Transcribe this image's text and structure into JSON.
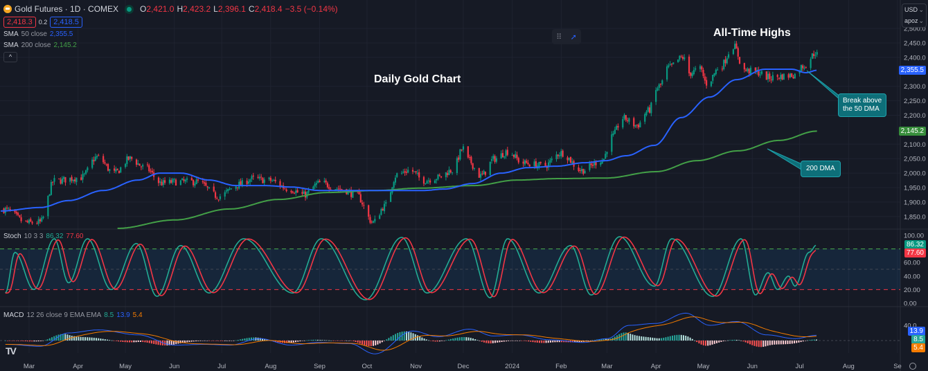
{
  "header": {
    "symbol_title": "Gold Futures · 1D · COMEX",
    "ohlc": {
      "o_label": "O",
      "o": "2,421.0",
      "h_label": "H",
      "h": "2,423.2",
      "l_label": "L",
      "l": "2,396.1",
      "c_label": "C",
      "c": "2,418.4",
      "change": "−3.5 (−0.14%)"
    },
    "bid": "2,418.3",
    "spread": "0.2",
    "ask": "2,418.5",
    "sma50": {
      "label": "SMA",
      "params": "50 close",
      "value": "2,355.5"
    },
    "sma200": {
      "label": "SMA",
      "params": "200 close",
      "value": "2,145.2"
    },
    "collapse_icon": "chevron-up"
  },
  "toolbar": {
    "drag_icon": "drag-handle",
    "cursor_icon": "cursor-arrow"
  },
  "currency": {
    "value": "USD",
    "unit": "apoz"
  },
  "annotations": {
    "daily_title": "Daily Gold Chart",
    "ath": "All-Time Highs",
    "break_line1": "Break above",
    "break_line2": "the 50 DMA",
    "dma200": "200 DMA"
  },
  "stoch_legend": {
    "label": "Stoch",
    "params": "10 3 3",
    "k": "86.32",
    "d": "77.60"
  },
  "macd_legend": {
    "label": "MACD",
    "params": "12 26 close 9 EMA EMA",
    "hist": "8.5",
    "macd": "13.9",
    "signal": "5.4"
  },
  "colors": {
    "bg": "#161a25",
    "up": "#089981",
    "down": "#f23645",
    "sma50": "#2962ff",
    "sma200": "#43a047",
    "stoch_k": "#22ab94",
    "stoch_d": "#f23645",
    "macd": "#2962ff",
    "signal": "#f57c00",
    "callout": "#0e6f79"
  },
  "chart_data": {
    "type": "candlestick",
    "price_axis": {
      "ticks": [
        "2,500.0",
        "2,450.0",
        "2,400.0",
        "2,300.0",
        "2,250.0",
        "2,200.0",
        "2,100.0",
        "2,050.0",
        "2,000.0",
        "1,950.0",
        "1,900.0",
        "1,850.0"
      ],
      "tick_values": [
        2500,
        2450,
        2400,
        2300,
        2250,
        2200,
        2100,
        2050,
        2000,
        1950,
        1900,
        1850
      ],
      "range": [
        1800,
        2500
      ],
      "last_labels": {
        "sma50": "2,355.5",
        "sma200": "2,145.2"
      }
    },
    "time_axis": {
      "labels": [
        [
          "Mar",
          "2023-03-01"
        ],
        [
          "Apr",
          "2023-04-01"
        ],
        [
          "May",
          "2023-05-01"
        ],
        [
          "Jun",
          "2023-06-01"
        ],
        [
          "Jul",
          "2023-07-01"
        ],
        [
          "Aug",
          "2023-08-01"
        ],
        [
          "Sep",
          "2023-09-01"
        ],
        [
          "Oct",
          "2023-10-01"
        ],
        [
          "Nov",
          "2023-11-01"
        ],
        [
          "Dec",
          "2023-12-01"
        ],
        [
          "2024",
          "2024-01-01"
        ],
        [
          "Feb",
          "2024-02-01"
        ],
        [
          "Mar",
          "2024-03-01"
        ],
        [
          "Apr",
          "2024-04-01"
        ],
        [
          "May",
          "2024-05-01"
        ],
        [
          "Jun",
          "2024-06-01"
        ],
        [
          "Jul",
          "2024-07-01"
        ],
        [
          "Aug",
          "2024-08-01"
        ],
        [
          "Se",
          "2024-09-01"
        ]
      ]
    },
    "close": [
      [
        "2023-02-13",
        1875
      ],
      [
        "2023-02-28",
        1828
      ],
      [
        "2023-03-08",
        1830
      ],
      [
        "2023-03-17",
        1973
      ],
      [
        "2023-04-03",
        1985
      ],
      [
        "2023-04-13",
        2055
      ],
      [
        "2023-04-24",
        2000
      ],
      [
        "2023-05-04",
        2050
      ],
      [
        "2023-05-13",
        2020
      ],
      [
        "2023-05-24",
        1965
      ],
      [
        "2023-06-02",
        1970
      ],
      [
        "2023-06-15",
        1970
      ],
      [
        "2023-06-29",
        1920
      ],
      [
        "2023-07-12",
        1960
      ],
      [
        "2023-07-20",
        1980
      ],
      [
        "2023-07-31",
        1975
      ],
      [
        "2023-08-13",
        1945
      ],
      [
        "2023-08-22",
        1925
      ],
      [
        "2023-09-01",
        1965
      ],
      [
        "2023-09-15",
        1945
      ],
      [
        "2023-09-24",
        1925
      ],
      [
        "2023-10-05",
        1830
      ],
      [
        "2023-10-12",
        1885
      ],
      [
        "2023-10-20",
        1995
      ],
      [
        "2023-10-28",
        2010
      ],
      [
        "2023-11-06",
        1975
      ],
      [
        "2023-11-15",
        1985
      ],
      [
        "2023-11-24",
        2010
      ],
      [
        "2023-12-01",
        2085
      ],
      [
        "2023-12-04",
        2045
      ],
      [
        "2023-12-12",
        1990
      ],
      [
        "2023-12-21",
        2050
      ],
      [
        "2023-12-29",
        2075
      ],
      [
        "2024-01-08",
        2035
      ],
      [
        "2024-01-21",
        2025
      ],
      [
        "2024-02-01",
        2070
      ],
      [
        "2024-02-14",
        2010
      ],
      [
        "2024-02-27",
        2045
      ],
      [
        "2024-03-04",
        2125
      ],
      [
        "2024-03-11",
        2190
      ],
      [
        "2024-03-20",
        2165
      ],
      [
        "2024-03-27",
        2215
      ],
      [
        "2024-04-03",
        2300
      ],
      [
        "2024-04-09",
        2365
      ],
      [
        "2024-04-18",
        2400
      ],
      [
        "2024-04-22",
        2345
      ],
      [
        "2024-04-29",
        2360
      ],
      [
        "2024-05-03",
        2310
      ],
      [
        "2024-05-12",
        2370
      ],
      [
        "2024-05-20",
        2440
      ],
      [
        "2024-05-27",
        2355
      ],
      [
        "2024-06-03",
        2350
      ],
      [
        "2024-06-12",
        2330
      ],
      [
        "2024-06-21",
        2335
      ],
      [
        "2024-06-28",
        2340
      ],
      [
        "2024-07-03",
        2370
      ],
      [
        "2024-07-12",
        2418.4
      ]
    ],
    "sma50": [
      [
        "2023-02-11",
        1869
      ],
      [
        "2023-03-08",
        1881
      ],
      [
        "2023-03-26",
        1905
      ],
      [
        "2023-04-17",
        1940
      ],
      [
        "2023-05-09",
        1976
      ],
      [
        "2023-05-23",
        2000
      ],
      [
        "2023-06-05",
        2000
      ],
      [
        "2023-06-23",
        1976
      ],
      [
        "2023-07-10",
        1957
      ],
      [
        "2023-07-28",
        1957
      ],
      [
        "2023-08-14",
        1952
      ],
      [
        "2023-09-01",
        1940
      ],
      [
        "2023-09-18",
        1940
      ],
      [
        "2023-10-06",
        1940
      ],
      [
        "2023-10-24",
        1940
      ],
      [
        "2023-11-06",
        1940
      ],
      [
        "2023-11-19",
        1945
      ],
      [
        "2023-12-07",
        1964
      ],
      [
        "2023-12-25",
        2000
      ],
      [
        "2024-01-11",
        2019
      ],
      [
        "2024-01-29",
        2024
      ],
      [
        "2024-02-16",
        2036
      ],
      [
        "2024-02-29",
        2043
      ],
      [
        "2024-03-13",
        2060
      ],
      [
        "2024-03-31",
        2096
      ],
      [
        "2024-04-17",
        2192
      ],
      [
        "2024-05-05",
        2263
      ],
      [
        "2024-05-22",
        2323
      ],
      [
        "2024-06-09",
        2359
      ],
      [
        "2024-06-26",
        2359
      ],
      [
        "2024-07-05",
        2347
      ],
      [
        "2024-07-12",
        2355.5
      ]
    ],
    "sma200": [
      [
        "2023-04-26",
        1809
      ],
      [
        "2023-06-01",
        1838
      ],
      [
        "2023-07-06",
        1876
      ],
      [
        "2023-08-06",
        1909
      ],
      [
        "2023-09-06",
        1933
      ],
      [
        "2023-10-07",
        1940
      ],
      [
        "2023-11-03",
        1948
      ],
      [
        "2023-12-08",
        1957
      ],
      [
        "2024-01-04",
        1976
      ],
      [
        "2024-01-30",
        1981
      ],
      [
        "2024-02-29",
        1983
      ],
      [
        "2024-04-01",
        2005
      ],
      [
        "2024-04-27",
        2043
      ],
      [
        "2024-05-23",
        2077
      ],
      [
        "2024-06-18",
        2113
      ],
      [
        "2024-07-12",
        2145.2
      ]
    ],
    "stoch": {
      "axis_ticks": [
        "100.00",
        "60.00",
        "40.00",
        "20.00",
        "0.00"
      ],
      "tick_values": [
        100,
        60,
        40,
        20,
        0
      ],
      "levels": [
        80,
        50,
        20
      ],
      "last": {
        "k": "86.32",
        "d": "77.60"
      },
      "k": [
        [
          "2023-02-14",
          15
        ],
        [
          "2023-02-20",
          75
        ],
        [
          "2023-03-04",
          20
        ],
        [
          "2023-03-17",
          95
        ],
        [
          "2023-03-26",
          30
        ],
        [
          "2023-04-07",
          95
        ],
        [
          "2023-04-22",
          20
        ],
        [
          "2023-05-08",
          88
        ],
        [
          "2023-05-21",
          10
        ],
        [
          "2023-06-05",
          85
        ],
        [
          "2023-06-23",
          15
        ],
        [
          "2023-07-15",
          95
        ],
        [
          "2023-08-15",
          15
        ],
        [
          "2023-09-02",
          95
        ],
        [
          "2023-09-30",
          5
        ],
        [
          "2023-10-23",
          97
        ],
        [
          "2023-11-08",
          15
        ],
        [
          "2023-12-03",
          95
        ],
        [
          "2023-12-18",
          8
        ],
        [
          "2023-12-29",
          95
        ],
        [
          "2024-01-18",
          15
        ],
        [
          "2024-02-07",
          85
        ],
        [
          "2024-02-20",
          12
        ],
        [
          "2024-03-09",
          98
        ],
        [
          "2024-03-31",
          25
        ],
        [
          "2024-04-11",
          95
        ],
        [
          "2024-05-07",
          10
        ],
        [
          "2024-05-25",
          95
        ],
        [
          "2024-06-03",
          12
        ],
        [
          "2024-06-11",
          45
        ],
        [
          "2024-06-17",
          20
        ],
        [
          "2024-06-24",
          40
        ],
        [
          "2024-06-28",
          25
        ],
        [
          "2024-07-07",
          75
        ],
        [
          "2024-07-12",
          86.32
        ]
      ]
    },
    "macd": {
      "axis_ticks": [
        "40.0"
      ],
      "tick_values": [
        40
      ],
      "last": {
        "macd": "13.9",
        "hist": "8.5",
        "signal": "5.4"
      },
      "macd_line": [
        [
          "2023-02-14",
          -10
        ],
        [
          "2023-03-08",
          -15
        ],
        [
          "2023-03-26",
          20
        ],
        [
          "2023-04-14",
          28
        ],
        [
          "2023-05-09",
          15
        ],
        [
          "2023-06-01",
          -12
        ],
        [
          "2023-06-20",
          -10
        ],
        [
          "2023-07-06",
          -12
        ],
        [
          "2023-07-25",
          5
        ],
        [
          "2023-08-14",
          -12
        ],
        [
          "2023-08-31",
          -5
        ],
        [
          "2023-09-20",
          -8
        ],
        [
          "2023-10-06",
          -35
        ],
        [
          "2023-10-30",
          25
        ],
        [
          "2023-11-15",
          10
        ],
        [
          "2023-12-05",
          30
        ],
        [
          "2023-12-20",
          12
        ],
        [
          "2024-01-05",
          15
        ],
        [
          "2024-01-25",
          2
        ],
        [
          "2024-02-15",
          -5
        ],
        [
          "2024-03-01",
          5
        ],
        [
          "2024-03-15",
          40
        ],
        [
          "2024-04-01",
          45
        ],
        [
          "2024-04-20",
          72
        ],
        [
          "2024-05-05",
          40
        ],
        [
          "2024-05-22",
          50
        ],
        [
          "2024-06-10",
          15
        ],
        [
          "2024-06-28",
          5
        ],
        [
          "2024-07-12",
          13.9
        ]
      ]
    }
  }
}
